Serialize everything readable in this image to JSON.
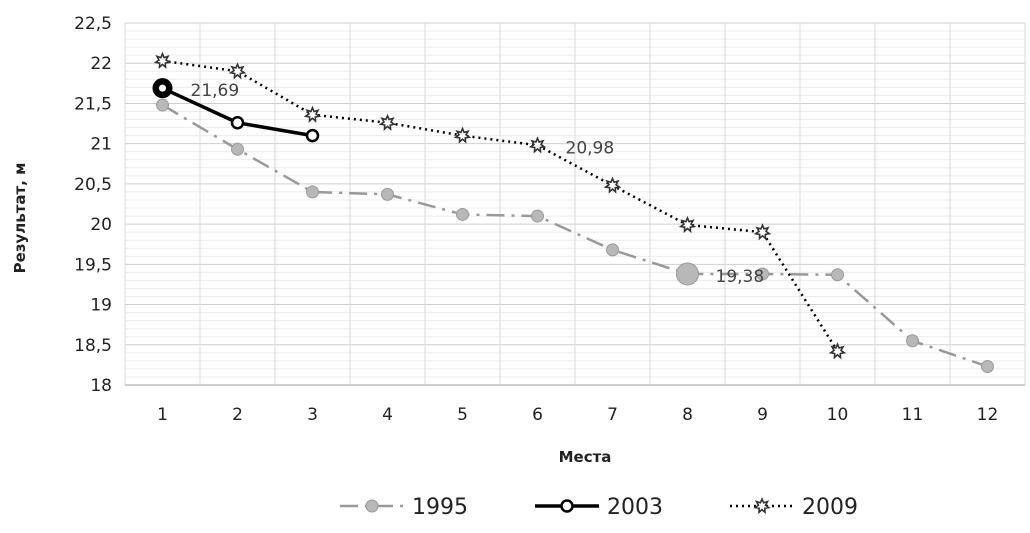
{
  "chart_data": {
    "type": "line",
    "title": "",
    "xlabel": "Места",
    "ylabel": "Результат, м",
    "x": [
      1,
      2,
      3,
      4,
      5,
      6,
      7,
      8,
      9,
      10,
      11,
      12
    ],
    "x_tick_labels": [
      "1",
      "2",
      "3",
      "4",
      "5",
      "6",
      "7",
      "8",
      "9",
      "10",
      "11",
      "12"
    ],
    "ylim": [
      18,
      22.5
    ],
    "y_ticks": [
      18,
      18.5,
      19,
      19.5,
      20,
      20.5,
      21,
      21.5,
      22,
      22.5
    ],
    "y_tick_labels": [
      "18",
      "18,5",
      "19",
      "19,5",
      "20",
      "20,5",
      "21",
      "21,5",
      "22",
      "22,5"
    ],
    "grid": true,
    "legend_position": "bottom",
    "series": [
      {
        "name": "1995",
        "color": "#999999",
        "line_style": "dash-dot",
        "marker": "sphere",
        "values": [
          21.48,
          20.93,
          20.4,
          20.37,
          20.12,
          20.1,
          19.68,
          19.38,
          19.38,
          19.37,
          18.55,
          18.23
        ]
      },
      {
        "name": "2003",
        "color": "#000000",
        "line_style": "solid",
        "marker": "ring",
        "values": [
          21.69,
          21.26,
          21.1,
          null,
          null,
          null,
          null,
          null,
          null,
          null,
          null,
          null
        ]
      },
      {
        "name": "2009",
        "color": "#000000",
        "line_style": "dotted",
        "marker": "star",
        "values": [
          22.03,
          21.9,
          21.36,
          21.26,
          21.1,
          20.98,
          20.48,
          19.99,
          19.9,
          18.42,
          null,
          null
        ]
      }
    ],
    "annotations": [
      {
        "text": "21,69",
        "series": "2003",
        "x": 1,
        "y": 21.69
      },
      {
        "text": "20,98",
        "series": "2009",
        "x": 6,
        "y": 20.98
      },
      {
        "text": "19,38",
        "series": "1995",
        "x": 8,
        "y": 19.38
      }
    ]
  }
}
